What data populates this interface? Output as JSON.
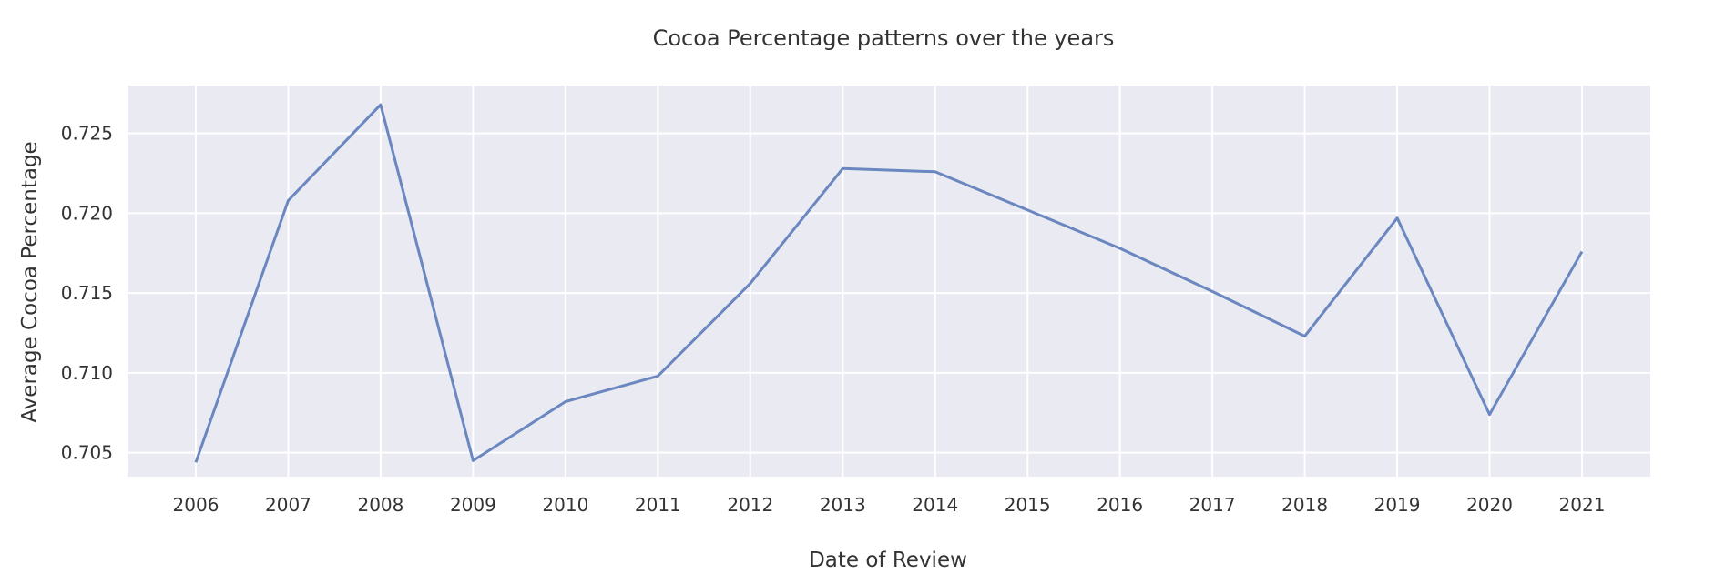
{
  "chart_data": {
    "type": "line",
    "title": "Cocoa Percentage patterns over the years",
    "xlabel": "Date of Review",
    "ylabel": "Average Cocoa Percentage",
    "x": [
      "2006",
      "2007",
      "2008",
      "2009",
      "2010",
      "2011",
      "2012",
      "2013",
      "2014",
      "2015",
      "2016",
      "2017",
      "2018",
      "2019",
      "2020",
      "2021"
    ],
    "series": [
      {
        "values": [
          0.7044,
          0.7208,
          0.7268,
          0.7045,
          0.7082,
          0.7098,
          0.7156,
          0.7228,
          0.7226,
          0.7202,
          0.7178,
          0.7151,
          0.7123,
          0.7197,
          0.7074,
          0.7176
        ]
      }
    ],
    "yticks": [
      0.705,
      0.71,
      0.715,
      0.72,
      0.725
    ],
    "ytick_labels": [
      "0.705",
      "0.710",
      "0.715",
      "0.720",
      "0.725"
    ],
    "ylim": [
      0.7035,
      0.728
    ],
    "grid": true,
    "colors": {
      "background": "#eaeaf2",
      "grid": "#ffffff",
      "line": "#6b87c0",
      "text": "#333333"
    }
  }
}
